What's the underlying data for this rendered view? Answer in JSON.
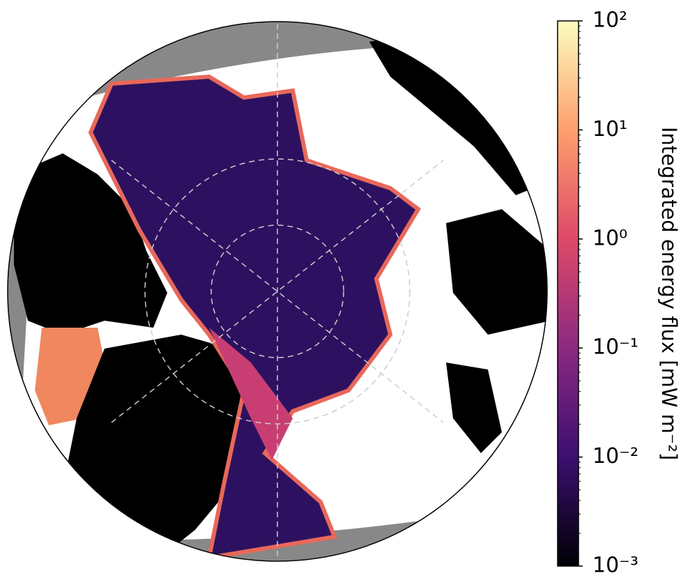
{
  "colorbar": {
    "label": "Integrated energy flux [mW m⁻²]",
    "scale": "log",
    "lim": [
      0.001,
      100
    ],
    "ticks": [
      {
        "value": 0.001,
        "label": "10⁻³"
      },
      {
        "value": 0.01,
        "label": "10⁻²"
      },
      {
        "value": 0.1,
        "label": "10⁻¹"
      },
      {
        "value": 1,
        "label": "10⁰"
      },
      {
        "value": 10,
        "label": "10¹"
      },
      {
        "value": 100,
        "label": "10²"
      }
    ],
    "colormap": [
      "#000004",
      "#3b0f70",
      "#8c2981",
      "#de4968",
      "#fe9f6d",
      "#fcfdbf"
    ]
  }
}
